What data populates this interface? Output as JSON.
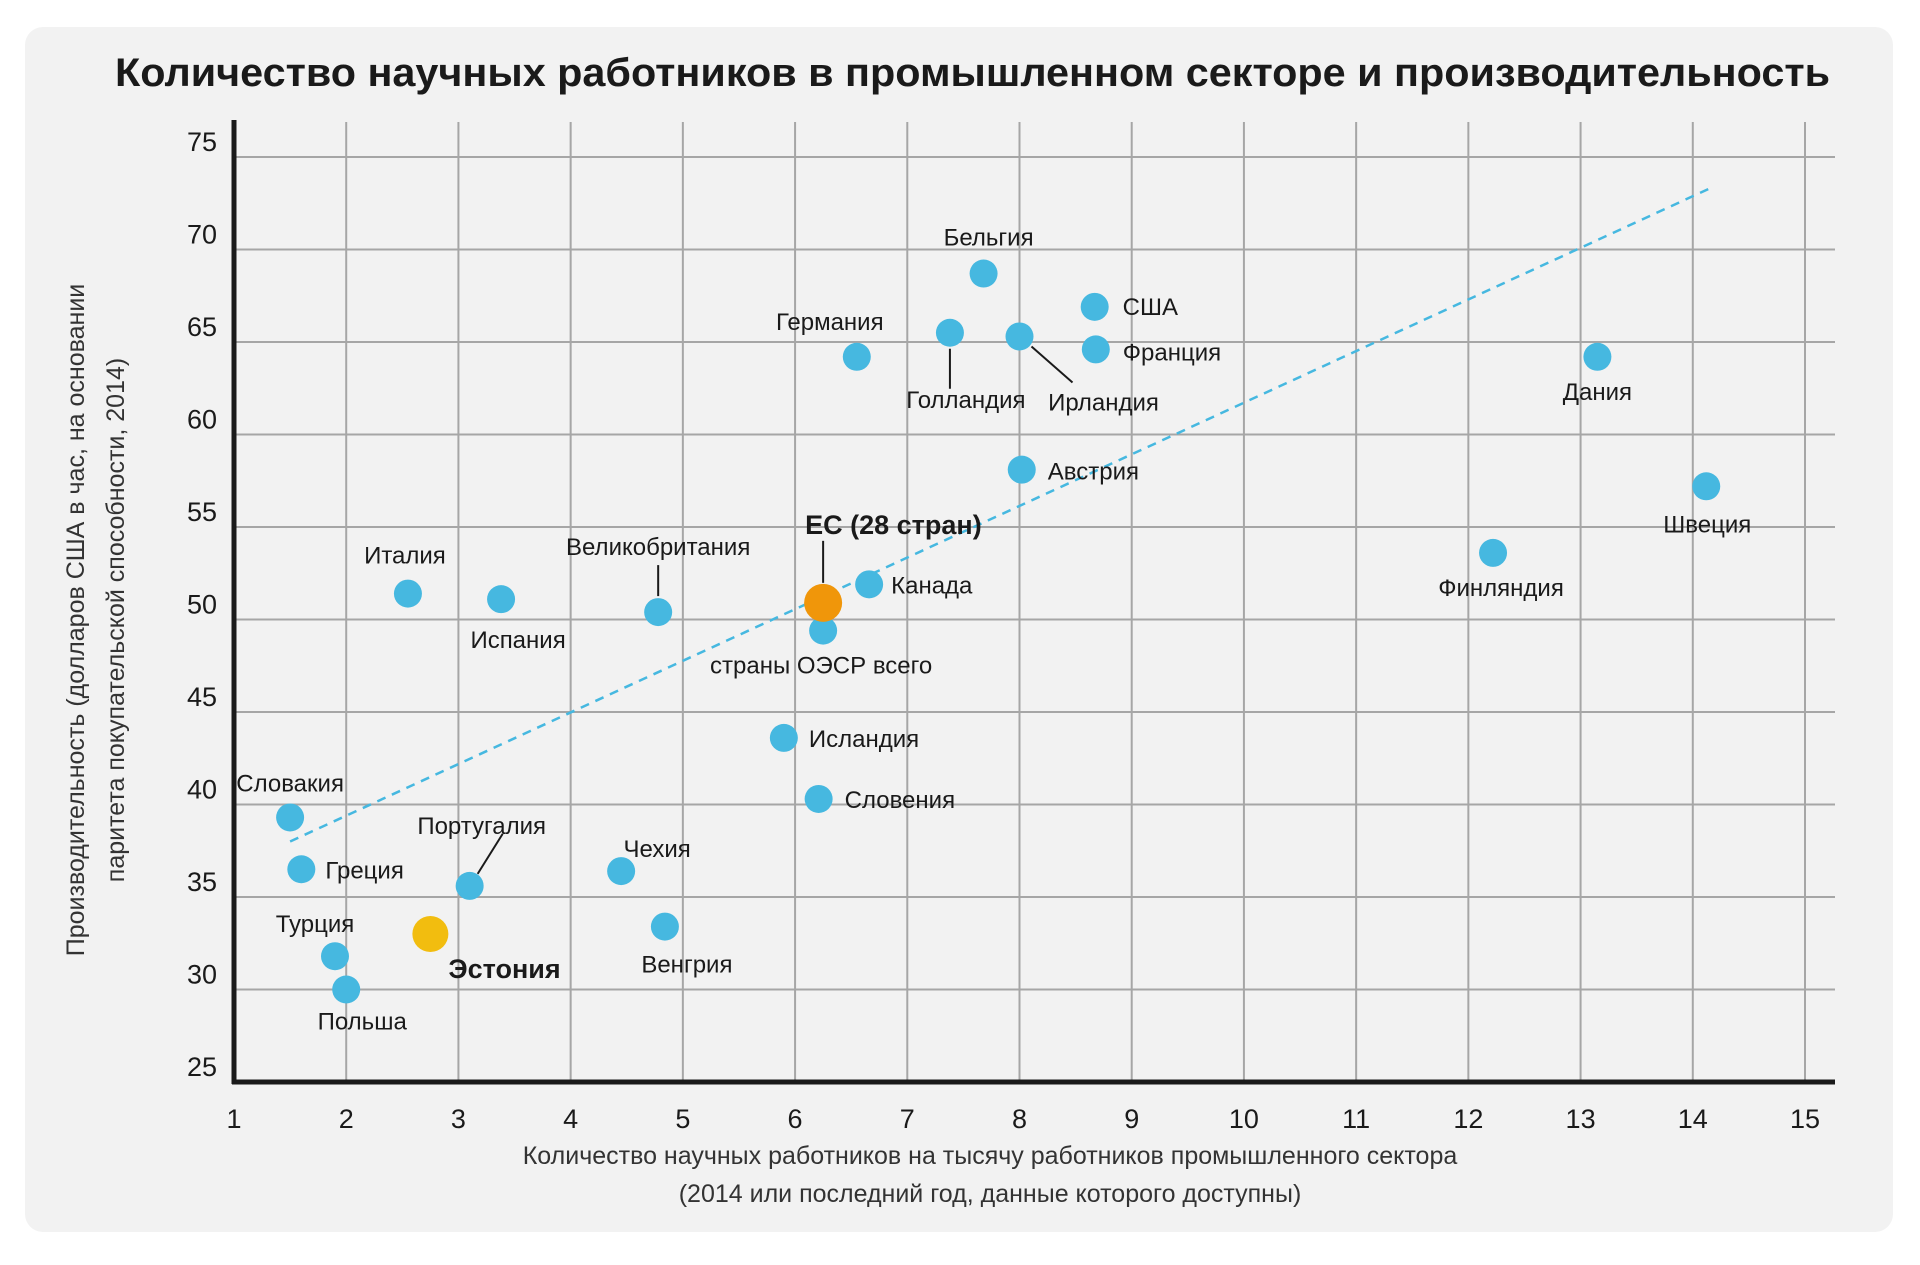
{
  "chart_data": {
    "type": "scatter",
    "title": "Количество научных работников в промышленном секторе и производительность",
    "xlabel": [
      "Количество научных работников на тысячу работников промышленного сектора",
      "(2014 или последний год, данные которого доступны)"
    ],
    "ylabel": [
      "Производительность (долларов США в час, на основании",
      "паритета покупательской способности, 2014)"
    ],
    "xlim": [
      1,
      15
    ],
    "ylim": [
      25,
      75
    ],
    "xticks": [
      "1",
      "2",
      "3",
      "4",
      "5",
      "6",
      "7",
      "8",
      "9",
      "10",
      "11",
      "12",
      "13",
      "14",
      "15"
    ],
    "yticks": [
      "25",
      "30",
      "35",
      "40",
      "45",
      "50",
      "55",
      "60",
      "65",
      "70",
      "75"
    ],
    "grid": true,
    "colors": {
      "default": "#46b8e0",
      "eu": "#f0960a",
      "estonia": "#f2bd0f",
      "trend": "#46b8e0"
    },
    "trendline": {
      "x": [
        1.5,
        14.15
      ],
      "y": [
        38.0,
        73.3
      ]
    },
    "points": [
      {
        "label": "Словакия",
        "x": 1.5,
        "y": 39.3
      },
      {
        "label": "Греция",
        "x": 1.6,
        "y": 36.5
      },
      {
        "label": "Турция",
        "x": 1.9,
        "y": 31.8
      },
      {
        "label": "Польша",
        "x": 2.0,
        "y": 30.0
      },
      {
        "label": "Эстония",
        "x": 2.75,
        "y": 33.0,
        "highlight": "estonia"
      },
      {
        "label": "Португалия",
        "x": 3.1,
        "y": 35.6
      },
      {
        "label": "Италия",
        "x": 2.55,
        "y": 51.4
      },
      {
        "label": "Испания",
        "x": 3.38,
        "y": 51.1
      },
      {
        "label": "Чехия",
        "x": 4.45,
        "y": 36.4
      },
      {
        "label": "Венгрия",
        "x": 4.84,
        "y": 33.4
      },
      {
        "label": "Великобритания",
        "x": 4.78,
        "y": 50.4
      },
      {
        "label": "Исландия",
        "x": 5.9,
        "y": 43.6
      },
      {
        "label": "Словения",
        "x": 6.21,
        "y": 40.3
      },
      {
        "label": "ЕС (28 стран)",
        "x": 6.25,
        "y": 50.9,
        "highlight": "eu"
      },
      {
        "label": "страны ОЭСР всего",
        "x": 6.25,
        "y": 49.4
      },
      {
        "label": "Канада",
        "x": 6.66,
        "y": 51.9
      },
      {
        "label": "Германия",
        "x": 6.55,
        "y": 64.2
      },
      {
        "label": "Голландия",
        "x": 7.38,
        "y": 65.5
      },
      {
        "label": "Бельгия",
        "x": 7.68,
        "y": 68.7
      },
      {
        "label": "Ирландия",
        "x": 8.0,
        "y": 65.3
      },
      {
        "label": "Австрия",
        "x": 8.02,
        "y": 58.1
      },
      {
        "label": "США",
        "x": 8.67,
        "y": 66.9
      },
      {
        "label": "Франция",
        "x": 8.68,
        "y": 64.6
      },
      {
        "label": "Финляндия",
        "x": 12.22,
        "y": 53.6
      },
      {
        "label": "Дания",
        "x": 13.15,
        "y": 64.2
      },
      {
        "label": "Швеция",
        "x": 14.12,
        "y": 57.2
      }
    ]
  }
}
